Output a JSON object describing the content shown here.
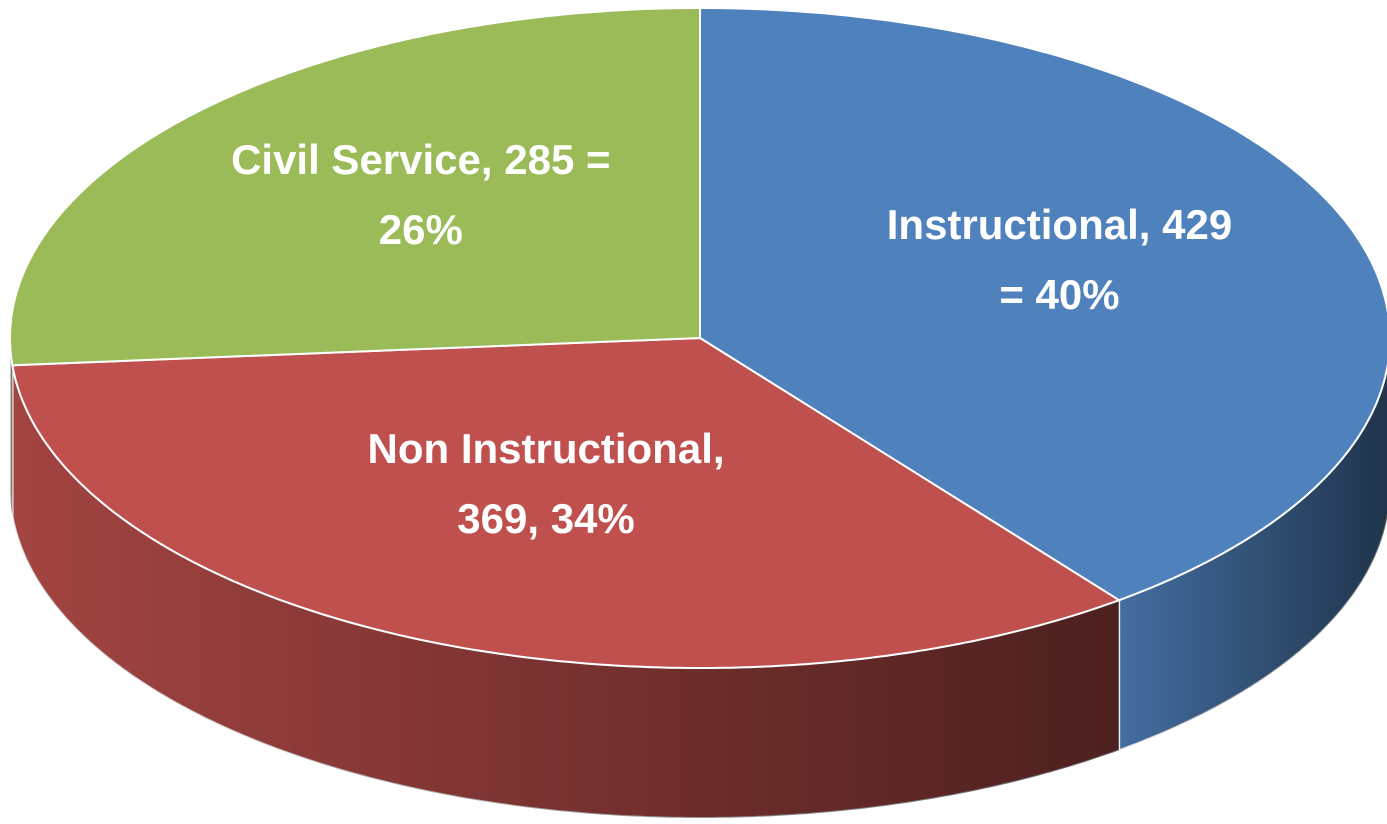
{
  "chart_data": {
    "type": "pie3d",
    "categories": [
      "Instructional",
      "Non Instructional",
      "Civil Service"
    ],
    "values": [
      429,
      369,
      285
    ],
    "value_labels": [
      "Instructional, 429 = 40%",
      "Non Instructional, 369, 34%",
      "Civil Service, 285 = 26%"
    ],
    "colors": [
      "#4f81bd",
      "#c0504d",
      "#9bbb59"
    ]
  }
}
